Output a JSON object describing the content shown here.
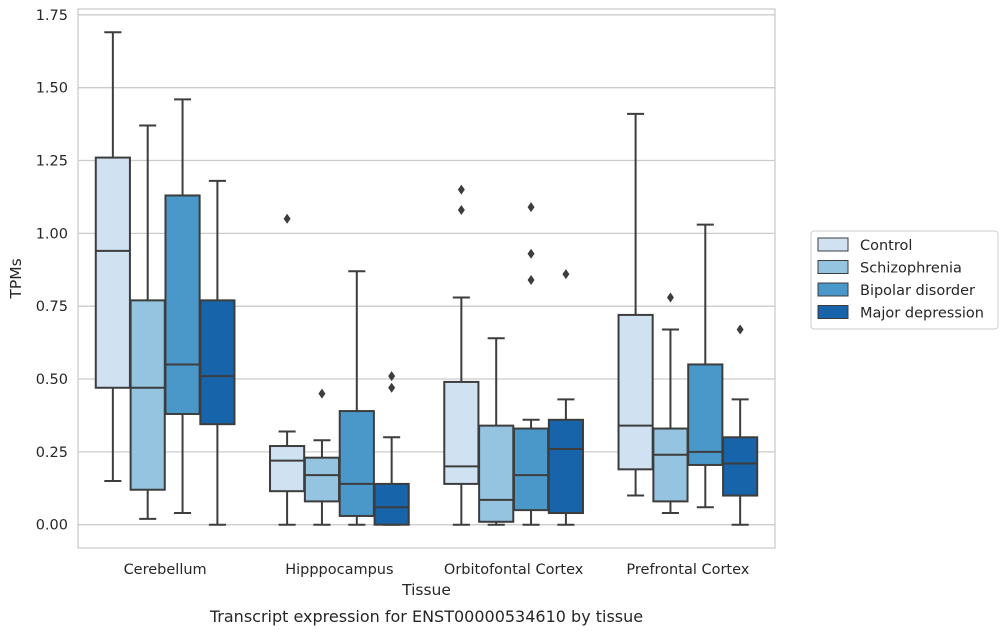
{
  "chart_data": {
    "type": "box",
    "caption": "Transcript expression for ENST00000534610 by tissue",
    "xlabel": "Tissue",
    "ylabel": "TPMs",
    "ylim": [
      -0.08,
      1.77
    ],
    "yticks": [
      "0.00",
      "0.25",
      "0.50",
      "0.75",
      "1.00",
      "1.25",
      "1.50",
      "1.75"
    ],
    "grid": "horizontal",
    "legend_position": "right",
    "categories": [
      "Cerebellum",
      "Hipppocampus",
      "Orbitofontal Cortex",
      "Prefrontal Cortex"
    ],
    "series": [
      {
        "name": "Control",
        "color": "#d0e1f2",
        "boxes": [
          {
            "min": 0.15,
            "q1": 0.47,
            "median": 0.94,
            "q3": 1.26,
            "max": 1.69,
            "outliers": []
          },
          {
            "min": 0.0,
            "q1": 0.115,
            "median": 0.22,
            "q3": 0.27,
            "max": 0.32,
            "outliers": [
              1.05
            ]
          },
          {
            "min": 0.0,
            "q1": 0.14,
            "median": 0.2,
            "q3": 0.49,
            "max": 0.78,
            "outliers": [
              1.08,
              1.15
            ]
          },
          {
            "min": 0.1,
            "q1": 0.19,
            "median": 0.34,
            "q3": 0.72,
            "max": 1.41,
            "outliers": []
          }
        ]
      },
      {
        "name": "Schizophrenia",
        "color": "#94c4df",
        "boxes": [
          {
            "min": 0.02,
            "q1": 0.12,
            "median": 0.47,
            "q3": 0.77,
            "max": 1.37,
            "outliers": []
          },
          {
            "min": 0.0,
            "q1": 0.08,
            "median": 0.17,
            "q3": 0.23,
            "max": 0.29,
            "outliers": [
              0.45
            ]
          },
          {
            "min": 0.0,
            "q1": 0.01,
            "median": 0.085,
            "q3": 0.34,
            "max": 0.64,
            "outliers": []
          },
          {
            "min": 0.04,
            "q1": 0.08,
            "median": 0.24,
            "q3": 0.33,
            "max": 0.67,
            "outliers": [
              0.78
            ]
          }
        ]
      },
      {
        "name": "Bipolar disorder",
        "color": "#4a98c9",
        "boxes": [
          {
            "min": 0.04,
            "q1": 0.38,
            "median": 0.55,
            "q3": 1.13,
            "max": 1.46,
            "outliers": []
          },
          {
            "min": 0.0,
            "q1": 0.03,
            "median": 0.14,
            "q3": 0.39,
            "max": 0.87,
            "outliers": []
          },
          {
            "min": 0.0,
            "q1": 0.05,
            "median": 0.17,
            "q3": 0.33,
            "max": 0.36,
            "outliers": [
              0.84,
              0.93,
              1.09
            ]
          },
          {
            "min": 0.06,
            "q1": 0.205,
            "median": 0.25,
            "q3": 0.55,
            "max": 1.03,
            "outliers": []
          }
        ]
      },
      {
        "name": "Major depression",
        "color": "#1764ab",
        "boxes": [
          {
            "min": 0.0,
            "q1": 0.345,
            "median": 0.51,
            "q3": 0.77,
            "max": 1.18,
            "outliers": []
          },
          {
            "min": 0.0,
            "q1": 0.0,
            "median": 0.06,
            "q3": 0.14,
            "max": 0.3,
            "outliers": [
              0.47,
              0.51
            ]
          },
          {
            "min": 0.0,
            "q1": 0.04,
            "median": 0.26,
            "q3": 0.36,
            "max": 0.43,
            "outliers": [
              0.86
            ]
          },
          {
            "min": 0.0,
            "q1": 0.1,
            "median": 0.21,
            "q3": 0.3,
            "max": 0.43,
            "outliers": [
              0.67
            ]
          }
        ]
      }
    ]
  }
}
